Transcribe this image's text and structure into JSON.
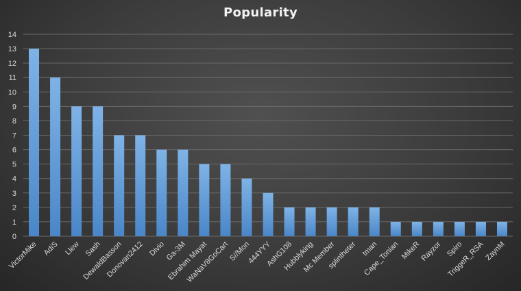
{
  "chart_data": {
    "type": "bar",
    "title": "Popularity",
    "categories": [
      "VictorMike",
      "AdiS",
      "Llew",
      "Sash",
      "DewaldBasson",
      "Donovan2412",
      "Divio",
      "Ga-3M",
      "Ebrahim Mayat",
      "WaNaV8GoCart",
      "S//Mon",
      "444YYY",
      "AshG108",
      "Hubblyking",
      "Mc Member",
      "splintheter",
      "tman",
      "Cape_Tonian",
      "MikeR",
      "Rayzor",
      "Spiro",
      "TriggeR_RSA",
      "ZaynM"
    ],
    "values": [
      13,
      11,
      9,
      9,
      7,
      7,
      6,
      6,
      5,
      5,
      4,
      3,
      2,
      2,
      2,
      2,
      2,
      1,
      1,
      1,
      1,
      1,
      1
    ],
    "ylim": [
      0,
      14
    ],
    "yticks": [
      0,
      1,
      2,
      3,
      4,
      5,
      6,
      7,
      8,
      9,
      10,
      11,
      12,
      13,
      14
    ],
    "grid": true,
    "xlabel": "",
    "ylabel": "",
    "colors": {
      "bar_top": "#7fb3e6",
      "bar_bottom": "#4a86c8",
      "grid": "#6a6a6a",
      "text": "#d9d9d9",
      "title": "#f2f2f2"
    }
  }
}
